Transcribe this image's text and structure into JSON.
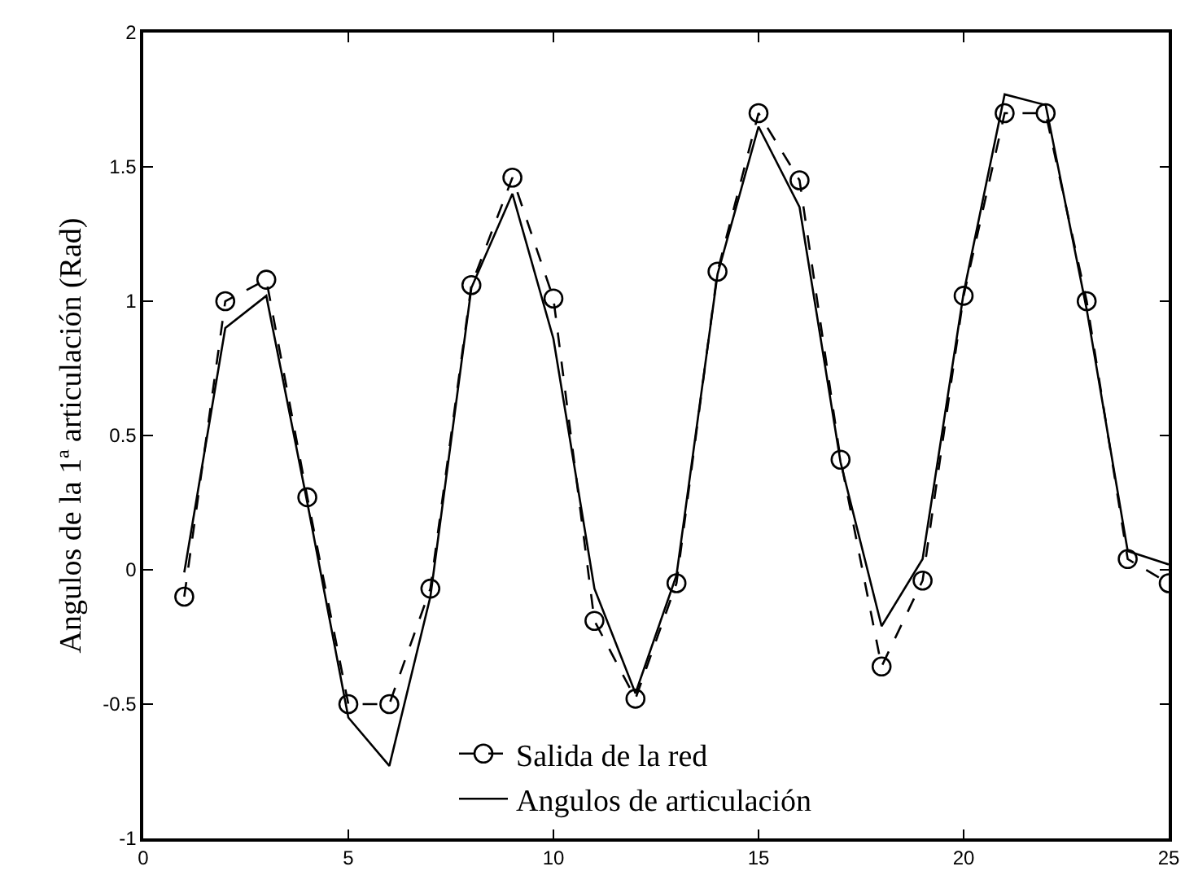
{
  "chart_data": {
    "type": "line",
    "ylabel": "Angulos de la 1ª articulación (Rad)",
    "x": [
      1,
      2,
      3,
      4,
      5,
      6,
      7,
      8,
      9,
      10,
      11,
      12,
      13,
      14,
      15,
      16,
      17,
      18,
      19,
      20,
      21,
      22,
      23,
      24,
      25
    ],
    "series": [
      {
        "name": "Salida de la red",
        "color": "#000000",
        "marker": "circle",
        "line_style": "dashed",
        "values": [
          -0.1,
          1.0,
          1.08,
          0.27,
          -0.5,
          -0.5,
          -0.07,
          1.06,
          1.46,
          1.01,
          -0.19,
          -0.48,
          -0.05,
          1.11,
          1.7,
          1.45,
          0.41,
          -0.36,
          -0.04,
          1.02,
          1.7,
          1.7,
          1.0,
          0.04,
          -0.05
        ]
      },
      {
        "name": "Angulos de articulación",
        "color": "#000000",
        "marker": "none",
        "line_style": "solid",
        "values": [
          -0.01,
          0.9,
          1.02,
          0.25,
          -0.55,
          -0.73,
          -0.1,
          1.05,
          1.4,
          0.86,
          -0.07,
          -0.46,
          -0.02,
          1.1,
          1.65,
          1.35,
          0.4,
          -0.21,
          0.04,
          1.03,
          1.77,
          1.73,
          0.97,
          0.07,
          0.02
        ]
      }
    ],
    "xlim": [
      0,
      25
    ],
    "xticks": [
      0,
      5,
      10,
      15,
      20,
      25
    ],
    "ylim": [
      -1,
      2
    ],
    "yticks": [
      -1,
      -0.5,
      0,
      0.5,
      1,
      1.5,
      2
    ],
    "grid": false,
    "legend": "bottom"
  }
}
